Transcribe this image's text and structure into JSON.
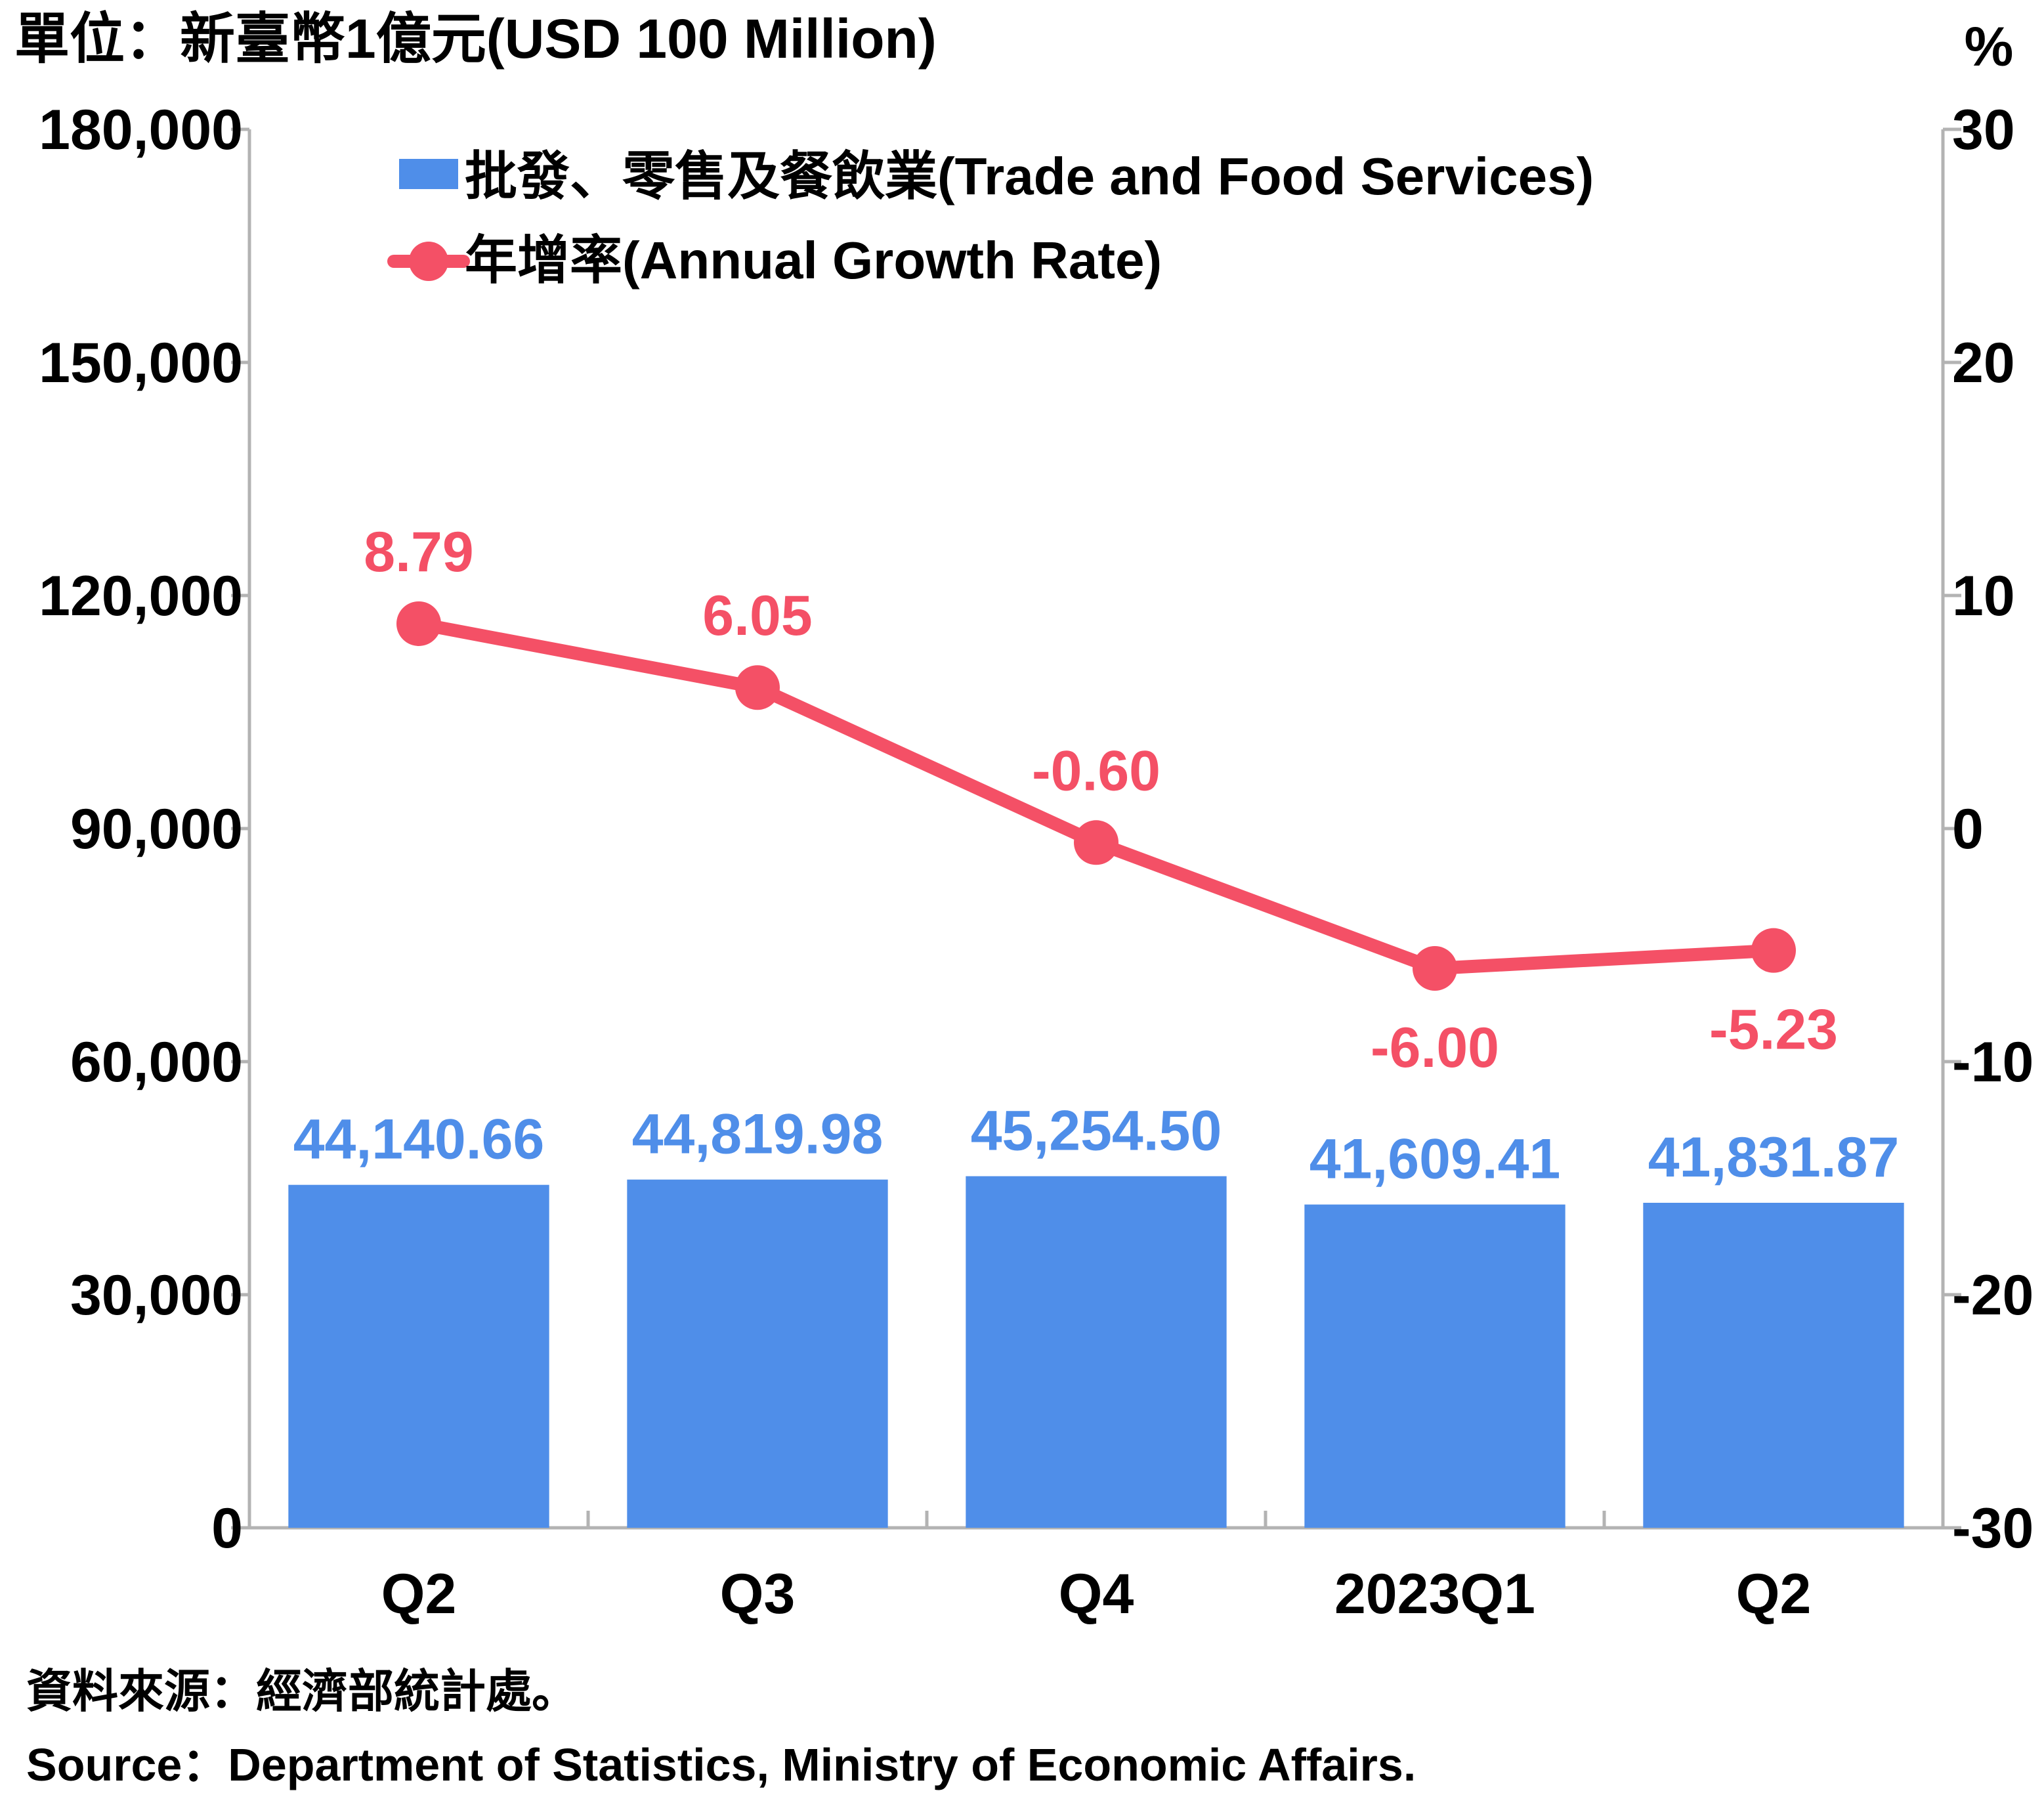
{
  "unit_label_left": "單位：新臺幣1億元(USD 100 Million)",
  "unit_label_right": "%",
  "colors": {
    "bar": "#4f8ee9",
    "line": "#f45066",
    "axis": "#b3b3b3",
    "text": "#000000"
  },
  "chart_data": {
    "type": "bar",
    "categories": [
      "Q2",
      "Q3",
      "Q4",
      "2023Q1",
      "Q2"
    ],
    "series": [
      {
        "name": "批發、零售及餐飲業(Trade and Food Services)",
        "type": "bar",
        "axis": "left",
        "values": [
          44140.66,
          44819.98,
          45254.5,
          41609.41,
          41831.87
        ],
        "labels": [
          "44,140.66",
          "44,819.98",
          "45,254.50",
          "41,609.41",
          "41,831.87"
        ]
      },
      {
        "name": "年增率(Annual Growth Rate)",
        "type": "line",
        "axis": "right",
        "values": [
          8.79,
          6.05,
          -0.6,
          -6.0,
          -5.23
        ],
        "labels": [
          "8.79",
          "6.05",
          "-0.60",
          "-6.00",
          "-5.23"
        ]
      }
    ],
    "y_left": {
      "lim": [
        0,
        180000
      ],
      "ticks": [
        0,
        30000,
        60000,
        90000,
        120000,
        150000,
        180000
      ],
      "tick_labels": [
        "0",
        "30,000",
        "60,000",
        "90,000",
        "120,000",
        "150,000",
        "180,000"
      ]
    },
    "y_right": {
      "lim": [
        -30,
        30
      ],
      "ticks": [
        -30,
        -20,
        -10,
        0,
        10,
        20,
        30
      ],
      "tick_labels": [
        "-30",
        "-20",
        "-10",
        "0",
        "10",
        "20",
        "30"
      ]
    },
    "grid": false,
    "legend_position": "top-center"
  },
  "source": {
    "zh": "資料來源：經濟部統計處。",
    "en": "Source：Department of Statistics, Ministry of Economic Affairs."
  }
}
